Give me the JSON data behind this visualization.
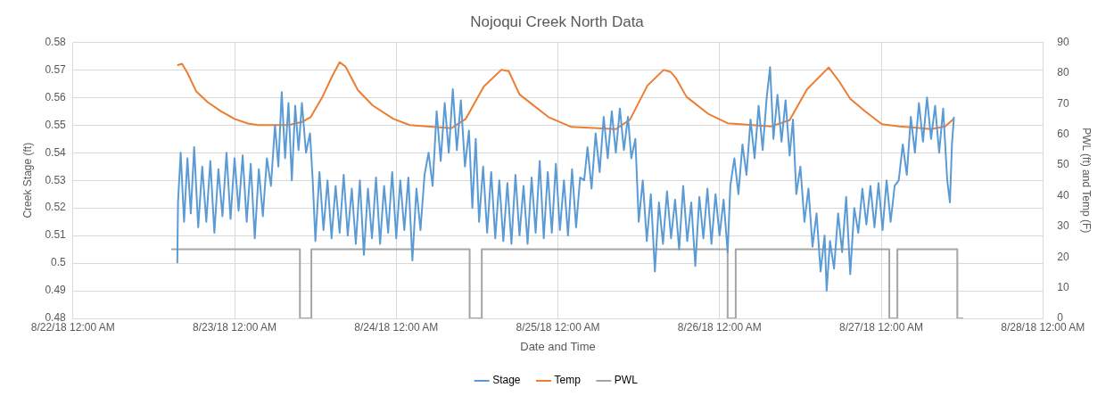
{
  "chart_data": {
    "type": "line",
    "title": "Nojoqui Creek North Data",
    "xlabel": "Date and Time",
    "ylabel": "Creek Stage (ft)",
    "y2label": "PWL (ft) and Temp (F)",
    "xlim": [
      "--08-22T00:00",
      "--08-28T00:00"
    ],
    "xticks": [
      {
        "value": "--08-22T00:00",
        "label": "8/22/18 12:00 AM"
      },
      {
        "value": "--08-23T00:00",
        "label": "8/23/18 12:00 AM"
      },
      {
        "value": "--08-24T00:00",
        "label": "8/24/18 12:00 AM"
      },
      {
        "value": "--08-25T00:00",
        "label": "8/25/18 12:00 AM"
      },
      {
        "value": "--08-26T00:00",
        "label": "8/26/18 12:00 AM"
      },
      {
        "value": "--08-27T00:00",
        "label": "8/27/18 12:00 AM"
      },
      {
        "value": "--08-28T00:00",
        "label": "8/28/18 12:00 AM"
      }
    ],
    "ylim": [
      0.48,
      0.58
    ],
    "yticks": [
      0.48,
      0.49,
      0.5,
      0.51,
      0.52,
      0.53,
      0.54,
      0.55,
      0.56,
      0.57,
      0.58
    ],
    "y2lim": [
      0,
      90
    ],
    "y2ticks": [
      0,
      10,
      20,
      30,
      40,
      50,
      60,
      70,
      80,
      90
    ],
    "grid": true,
    "legend": "bottom",
    "marker": "none",
    "series": [
      {
        "name": "Stage",
        "color": "#5b9bd5",
        "x": [
          "--08-22T15:30",
          "--08-22T15:36",
          "--08-22T16:00",
          "--08-22T16:30",
          "--08-22T17:00",
          "--08-22T17:30",
          "--08-22T18:00",
          "--08-22T18:36",
          "--08-22T19:12",
          "--08-22T19:48",
          "--08-22T20:24",
          "--08-22T21:00",
          "--08-22T21:36",
          "--08-22T22:12",
          "--08-22T22:48",
          "--08-22T23:24",
          "--08-23T00:00",
          "--08-23T00:36",
          "--08-23T01:12",
          "--08-23T01:48",
          "--08-23T02:24",
          "--08-23T03:00",
          "--08-23T03:36",
          "--08-23T04:12",
          "--08-23T04:48",
          "--08-23T05:24",
          "--08-23T06:00",
          "--08-23T06:30",
          "--08-23T07:00",
          "--08-23T07:30",
          "--08-23T08:00",
          "--08-23T08:30",
          "--08-23T09:00",
          "--08-23T09:30",
          "--08-23T10:00",
          "--08-23T10:36",
          "--08-23T11:12",
          "--08-23T11:36",
          "--08-23T12:00",
          "--08-23T12:36",
          "--08-23T13:12",
          "--08-23T13:48",
          "--08-23T14:24",
          "--08-23T15:00",
          "--08-23T15:36",
          "--08-23T16:12",
          "--08-23T16:48",
          "--08-23T17:24",
          "--08-23T18:00",
          "--08-23T18:36",
          "--08-23T19:12",
          "--08-23T19:48",
          "--08-23T20:24",
          "--08-23T21:00",
          "--08-23T21:36",
          "--08-23T22:12",
          "--08-23T22:48",
          "--08-23T23:24",
          "--08-24T00:00",
          "--08-24T00:36",
          "--08-24T01:12",
          "--08-24T01:48",
          "--08-24T02:24",
          "--08-24T03:00",
          "--08-24T03:36",
          "--08-24T04:12",
          "--08-24T04:48",
          "--08-24T05:24",
          "--08-24T06:00",
          "--08-24T06:36",
          "--08-24T07:12",
          "--08-24T07:48",
          "--08-24T08:24",
          "--08-24T09:00",
          "--08-24T09:36",
          "--08-24T10:12",
          "--08-24T10:48",
          "--08-24T11:18",
          "--08-24T11:48",
          "--08-24T12:18",
          "--08-24T12:54",
          "--08-24T13:30",
          "--08-24T14:06",
          "--08-24T14:42",
          "--08-24T15:18",
          "--08-24T15:54",
          "--08-24T16:30",
          "--08-24T17:06",
          "--08-24T17:42",
          "--08-24T18:18",
          "--08-24T18:54",
          "--08-24T19:30",
          "--08-24T20:06",
          "--08-24T20:42",
          "--08-24T21:18",
          "--08-24T21:54",
          "--08-24T22:30",
          "--08-24T23:06",
          "--08-24T23:42",
          "--08-25T00:18",
          "--08-25T00:54",
          "--08-25T01:30",
          "--08-25T02:06",
          "--08-25T02:42",
          "--08-25T03:18",
          "--08-25T03:54",
          "--08-25T04:24",
          "--08-25T05:00",
          "--08-25T05:36",
          "--08-25T06:12",
          "--08-25T06:48",
          "--08-25T07:24",
          "--08-25T08:00",
          "--08-25T08:36",
          "--08-25T09:12",
          "--08-25T09:48",
          "--08-25T10:24",
          "--08-25T10:54",
          "--08-25T11:30",
          "--08-25T12:00",
          "--08-25T12:36",
          "--08-25T13:12",
          "--08-25T13:48",
          "--08-25T14:24",
          "--08-25T15:00",
          "--08-25T15:36",
          "--08-25T16:12",
          "--08-25T16:48",
          "--08-25T17:24",
          "--08-25T18:00",
          "--08-25T18:36",
          "--08-25T19:12",
          "--08-25T19:48",
          "--08-25T20:24",
          "--08-25T21:00",
          "--08-25T21:36",
          "--08-25T22:12",
          "--08-25T22:48",
          "--08-25T23:24",
          "--08-26T00:00",
          "--08-26T00:36",
          "--08-26T01:12",
          "--08-26T01:36",
          "--08-26T02:12",
          "--08-26T02:48",
          "--08-26T03:24",
          "--08-26T04:00",
          "--08-26T04:36",
          "--08-26T05:12",
          "--08-26T05:48",
          "--08-26T06:24",
          "--08-26T07:00",
          "--08-26T07:30",
          "--08-26T08:00",
          "--08-26T08:36",
          "--08-26T09:12",
          "--08-26T09:48",
          "--08-26T10:24",
          "--08-26T10:54",
          "--08-26T11:24",
          "--08-26T12:00",
          "--08-26T12:36",
          "--08-26T13:12",
          "--08-26T13:48",
          "--08-26T14:24",
          "--08-26T15:00",
          "--08-26T15:36",
          "--08-26T15:54",
          "--08-26T16:24",
          "--08-26T17:00",
          "--08-26T17:36",
          "--08-26T18:12",
          "--08-26T18:48",
          "--08-26T19:24",
          "--08-26T20:00",
          "--08-26T20:36",
          "--08-26T21:12",
          "--08-26T21:48",
          "--08-26T22:24",
          "--08-26T23:00",
          "--08-26T23:36",
          "--08-27T00:12",
          "--08-27T00:48",
          "--08-27T01:24",
          "--08-27T02:00",
          "--08-27T02:36",
          "--08-27T03:12",
          "--08-27T03:48",
          "--08-27T04:24",
          "--08-27T05:00",
          "--08-27T05:36",
          "--08-27T06:12",
          "--08-27T06:48",
          "--08-27T07:24",
          "--08-27T08:00",
          "--08-27T08:36",
          "--08-27T09:12",
          "--08-27T09:48",
          "--08-27T10:12",
          "--08-27T10:30",
          "--08-27T10:48"
        ],
        "values": [
          0.5,
          0.522,
          0.54,
          0.515,
          0.538,
          0.518,
          0.542,
          0.513,
          0.535,
          0.515,
          0.537,
          0.511,
          0.534,
          0.517,
          0.54,
          0.516,
          0.538,
          0.519,
          0.539,
          0.515,
          0.536,
          0.509,
          0.534,
          0.517,
          0.538,
          0.528,
          0.55,
          0.535,
          0.562,
          0.538,
          0.558,
          0.53,
          0.557,
          0.541,
          0.558,
          0.54,
          0.547,
          0.53,
          0.508,
          0.533,
          0.512,
          0.53,
          0.509,
          0.528,
          0.511,
          0.532,
          0.51,
          0.527,
          0.507,
          0.53,
          0.503,
          0.527,
          0.509,
          0.531,
          0.507,
          0.528,
          0.511,
          0.533,
          0.509,
          0.53,
          0.512,
          0.531,
          0.501,
          0.527,
          0.512,
          0.532,
          0.54,
          0.528,
          0.555,
          0.537,
          0.558,
          0.54,
          0.563,
          0.541,
          0.559,
          0.535,
          0.548,
          0.52,
          0.545,
          0.515,
          0.535,
          0.511,
          0.533,
          0.509,
          0.53,
          0.508,
          0.529,
          0.507,
          0.532,
          0.51,
          0.528,
          0.507,
          0.531,
          0.511,
          0.537,
          0.509,
          0.533,
          0.511,
          0.536,
          0.512,
          0.53,
          0.51,
          0.534,
          0.513,
          0.531,
          0.53,
          0.542,
          0.527,
          0.547,
          0.533,
          0.553,
          0.538,
          0.555,
          0.54,
          0.556,
          0.541,
          0.553,
          0.538,
          0.545,
          0.515,
          0.53,
          0.508,
          0.525,
          0.497,
          0.522,
          0.507,
          0.526,
          0.509,
          0.523,
          0.505,
          0.528,
          0.508,
          0.522,
          0.499,
          0.524,
          0.509,
          0.527,
          0.507,
          0.525,
          0.51,
          0.523,
          0.504,
          0.528,
          0.538,
          0.525,
          0.543,
          0.532,
          0.552,
          0.538,
          0.557,
          0.541,
          0.56,
          0.571,
          0.545,
          0.561,
          0.544,
          0.559,
          0.539,
          0.552,
          0.525,
          0.535,
          0.515,
          0.527,
          0.506,
          0.518,
          0.497,
          0.51,
          0.49,
          0.508,
          0.498,
          0.518,
          0.504,
          0.524,
          0.496,
          0.52,
          0.511,
          0.527,
          0.514,
          0.528,
          0.513,
          0.529,
          0.512,
          0.53,
          0.515,
          0.528,
          0.53,
          0.543,
          0.532,
          0.553,
          0.54,
          0.558,
          0.544,
          0.56,
          0.545,
          0.557,
          0.54,
          0.556,
          0.53,
          0.522,
          0.543,
          0.553
        ]
      },
      {
        "name": "Temp",
        "color": "#ed7d31",
        "axis": "y2",
        "x": [
          "--08-22T15:30",
          "--08-22T16:12",
          "--08-22T17:00",
          "--08-22T18:18",
          "--08-22T20:00",
          "--08-22T22:00",
          "--08-23T00:00",
          "--08-23T02:00",
          "--08-23T03:30",
          "--08-23T08:00",
          "--08-23T10:00",
          "--08-23T11:18",
          "--08-23T13:00",
          "--08-23T14:30",
          "--08-23T15:36",
          "--08-23T16:30",
          "--08-23T18:18",
          "--08-23T20:30",
          "--08-23T23:36",
          "--08-24T02:00",
          "--08-24T08:12",
          "--08-24T10:18",
          "--08-24T13:00",
          "--08-24T15:36",
          "--08-24T16:42",
          "--08-24T18:18",
          "--08-24T22:36",
          "--08-25T02:00",
          "--08-25T08:36",
          "--08-25T10:42",
          "--08-25T13:18",
          "--08-25T15:42",
          "--08-25T16:42",
          "--08-25T17:30",
          "--08-25T19:06",
          "--08-25T22:18",
          "--08-26T01:12",
          "--08-26T07:42",
          "--08-26T10:24",
          "--08-26T13:00",
          "--08-26T16:12",
          "--08-26T17:48",
          "--08-26T19:24",
          "--08-26T21:36",
          "--08-27T00:06",
          "--08-27T02:42",
          "--08-27T07:24",
          "--08-27T09:30",
          "--08-27T10:48"
        ],
        "values": [
          82.5,
          83,
          80,
          74,
          70.5,
          67.5,
          65,
          63.5,
          63,
          63,
          64,
          65.6,
          72,
          79,
          83.5,
          82,
          74.4,
          69.4,
          65,
          63,
          62,
          65,
          75.6,
          81,
          80.6,
          73,
          65.6,
          62.4,
          61.7,
          64.8,
          75.9,
          81,
          80.4,
          78.4,
          72.2,
          66.7,
          63.6,
          62.6,
          64.6,
          74.7,
          81.8,
          77.1,
          71.6,
          67.5,
          63.3,
          62.6,
          61.7,
          62.6,
          65.1
        ]
      },
      {
        "name": "PWL",
        "color": "#a5a5a5",
        "axis": "y2",
        "x": [
          "--08-22T14:36",
          "--08-23T09:42",
          "--08-23T09:42",
          "--08-23T11:24",
          "--08-23T11:24",
          "--08-24T10:54",
          "--08-24T10:54",
          "--08-24T12:42",
          "--08-24T12:42",
          "--08-26T01:12",
          "--08-26T01:12",
          "--08-26T02:24",
          "--08-26T02:24",
          "--08-27T01:12",
          "--08-27T01:12",
          "--08-27T02:24",
          "--08-27T02:24",
          "--08-27T11:18",
          "--08-27T11:18",
          "--08-27T12:12"
        ],
        "values": [
          22.5,
          22.5,
          0,
          0,
          22.5,
          22.5,
          0,
          0,
          22.5,
          22.5,
          0,
          0,
          22.5,
          22.5,
          0,
          0,
          22.5,
          22.5,
          0,
          0
        ]
      }
    ]
  }
}
